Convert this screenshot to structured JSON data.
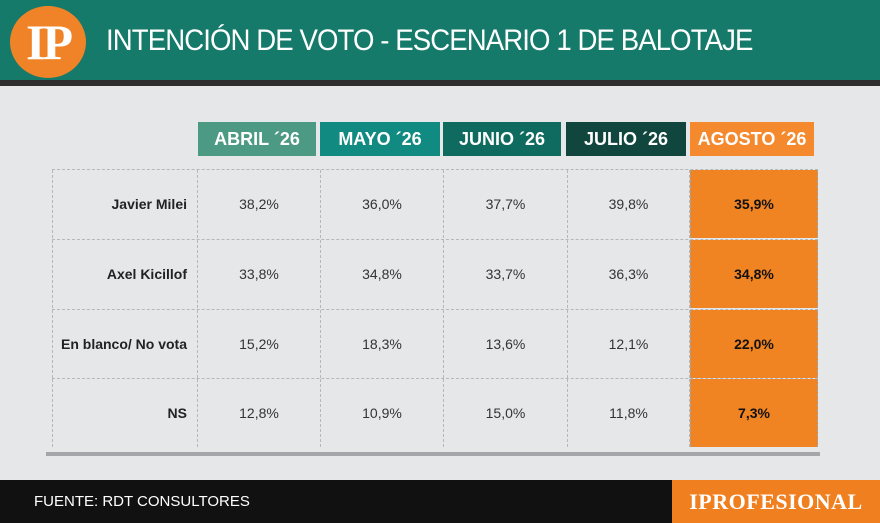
{
  "header": {
    "logo_text": "IP",
    "title": "INTENCIÓN DE VOTO - ESCENARIO 1 DE BALOTAJE"
  },
  "colors": {
    "header_bg": "#167a6a",
    "highlight": "#f08322",
    "col_abril": "#4d9a84",
    "col_mayo": "#118a82",
    "col_junio": "#0f6b60",
    "col_julio": "#10463d",
    "col_agosto": "#f5892e"
  },
  "chart_data": {
    "type": "table",
    "title": "INTENCIÓN DE VOTO - ESCENARIO 1 DE BALOTAJE",
    "columns": [
      "ABRIL ´26",
      "MAYO ´26",
      "JUNIO ´26",
      "JULIO ´26",
      "AGOSTO ´26"
    ],
    "rows": [
      {
        "label": "Javier Milei",
        "values": [
          "38,2%",
          "36,0%",
          "37,7%",
          "39,8%",
          "35,9%"
        ]
      },
      {
        "label": "Axel Kicillof",
        "values": [
          "33,8%",
          "34,8%",
          "33,7%",
          "36,3%",
          "34,8%"
        ]
      },
      {
        "label": "En blanco/ No vota",
        "values": [
          "15,2%",
          "18,3%",
          "13,6%",
          "12,1%",
          "22,0%"
        ]
      },
      {
        "label": "NS",
        "values": [
          "12,8%",
          "10,9%",
          "15,0%",
          "11,8%",
          "7,3%"
        ]
      }
    ],
    "highlighted_column": "AGOSTO ´26"
  },
  "footer": {
    "source": "FUENTE: RDT CONSULTORES",
    "brand": "IPROFESIONAL"
  }
}
